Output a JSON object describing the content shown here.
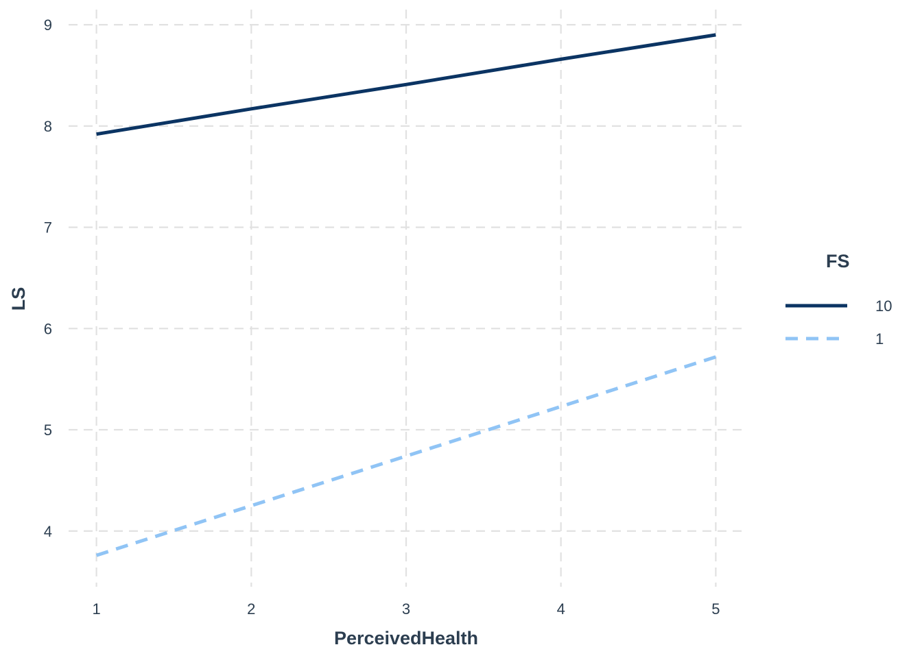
{
  "chart_data": {
    "type": "line",
    "title": "",
    "xlabel": "PerceivedHealth",
    "ylabel": "LS",
    "x": [
      1,
      2,
      3,
      4,
      5
    ],
    "x_ticks": [
      "1",
      "2",
      "3",
      "4",
      "5"
    ],
    "y_ticks": [
      "4",
      "5",
      "6",
      "7",
      "8",
      "9"
    ],
    "xlim": [
      0.82,
      5.18
    ],
    "ylim": [
      3.45,
      9.15
    ],
    "grid": true,
    "legend": {
      "title": "FS",
      "placement": "right"
    },
    "series": [
      {
        "name": "10",
        "values": [
          7.92,
          8.17,
          8.41,
          8.66,
          8.9
        ],
        "color": "#0b3463",
        "dash": "solid"
      },
      {
        "name": "1",
        "values": [
          3.76,
          4.25,
          4.74,
          5.23,
          5.72
        ],
        "color": "#90c4f5",
        "dash": "dashed"
      }
    ]
  }
}
